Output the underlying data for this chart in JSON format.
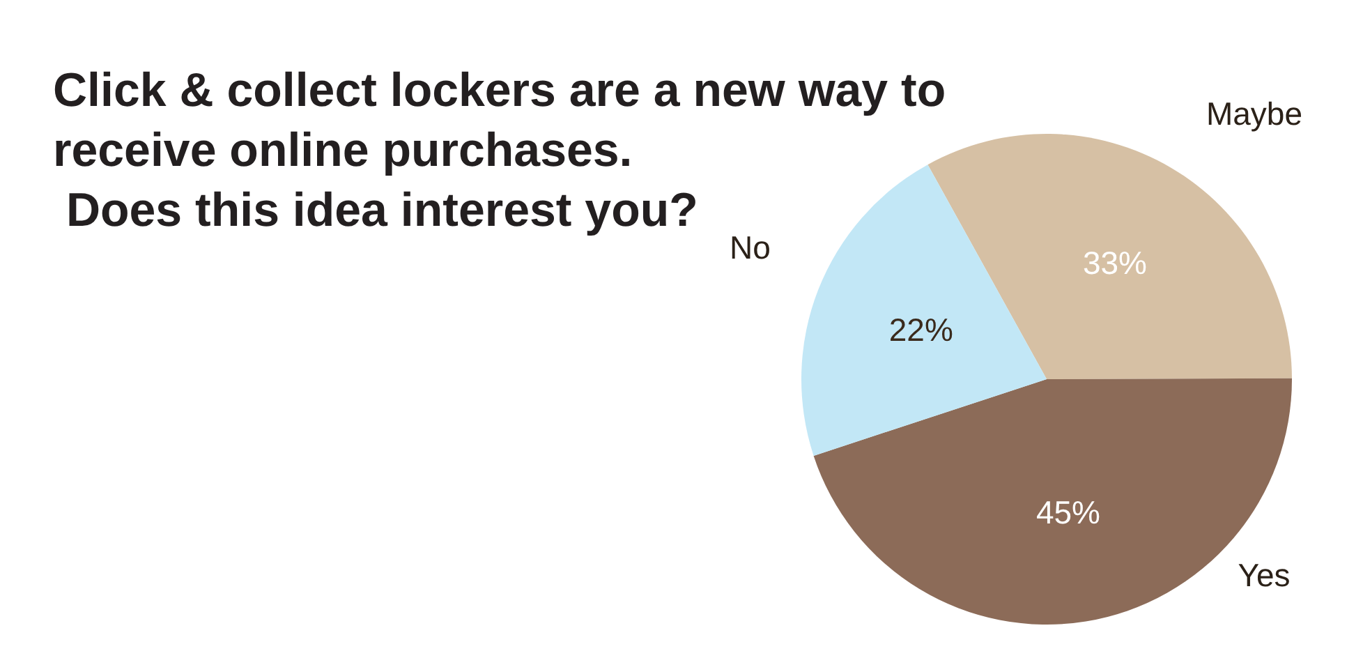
{
  "chart_data": {
    "type": "pie",
    "title": "Click & collect lockers are a new way to\nreceive online purchases.\n Does this idea interest you?",
    "categories": [
      "Maybe",
      "Yes",
      "No"
    ],
    "values": [
      33,
      45,
      22
    ],
    "colors": [
      "#d6c0a4",
      "#8c6b58",
      "#c2e7f6"
    ],
    "value_labels": [
      "33%",
      "45%",
      "22%"
    ]
  }
}
